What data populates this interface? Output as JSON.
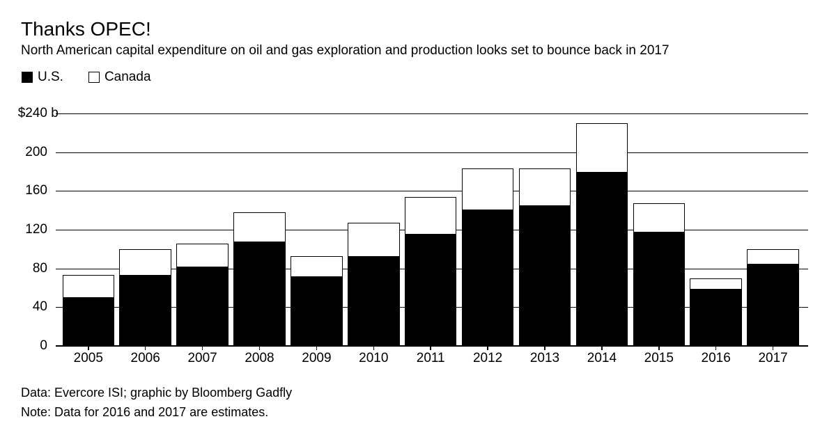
{
  "chart_data": {
    "type": "bar",
    "stacked": true,
    "title": "Thanks OPEC!",
    "subtitle": "North American capital expenditure on oil and gas exploration and production looks set to bounce back in 2017",
    "categories": [
      "2005",
      "2006",
      "2007",
      "2008",
      "2009",
      "2010",
      "2011",
      "2012",
      "2013",
      "2014",
      "2015",
      "2016",
      "2017"
    ],
    "series": [
      {
        "name": "U.S.",
        "color": "#000000",
        "values": [
          50,
          73,
          82,
          108,
          72,
          93,
          116,
          141,
          145,
          180,
          118,
          59,
          85
        ]
      },
      {
        "name": "Canada",
        "color": "#ffffff",
        "values": [
          23,
          27,
          24,
          30,
          21,
          34,
          38,
          42,
          38,
          50,
          29,
          11,
          15
        ]
      }
    ],
    "totals": [
      73,
      100,
      106,
      138,
      93,
      127,
      154,
      183,
      183,
      230,
      147,
      70,
      100
    ],
    "unit": "$ billions",
    "ylim": [
      0,
      240
    ],
    "grid": "horizontal",
    "legend_position": "top-left",
    "y_ticks": [
      {
        "value": 240,
        "label": "$240",
        "suffix": " b"
      },
      {
        "value": 200,
        "label": "200"
      },
      {
        "value": 160,
        "label": "160"
      },
      {
        "value": 120,
        "label": "120"
      },
      {
        "value": 80,
        "label": "80"
      },
      {
        "value": 40,
        "label": "40"
      },
      {
        "value": 0,
        "label": "0"
      }
    ]
  },
  "footer": {
    "source": "Data: Evercore ISI; graphic by Bloomberg Gadfly",
    "note": "Note: Data for 2016 and 2017 are estimates."
  }
}
